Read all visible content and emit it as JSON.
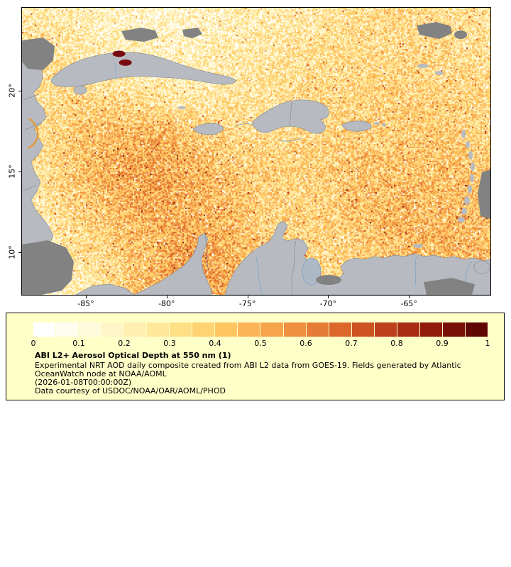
{
  "map": {
    "y_tick_labels": [
      "20°",
      "15°",
      "10°"
    ],
    "x_tick_labels": [
      "-85°",
      "-80°",
      "-75°",
      "-70°",
      "-65°"
    ]
  },
  "legend": {
    "background": "#FFFFC8",
    "title": "ABI L2+ Aerosol Optical Depth at 550 nm (1)",
    "caption_lines": [
      "Experimental NRT AOD daily composite created from ABI L2 data from GOES-19. Fields generated by Atlantic",
      "OceanWatch node at NOAA/AOML",
      "(2026-01-08T00:00:00Z)",
      "Data courtesy of USDOC/NOAA/OAR/AOML/PHOD"
    ]
  },
  "chart_data": {
    "type": "heatmap",
    "title": "ABI L2+ Aerosol Optical Depth at 550 nm (1)",
    "lon_range": [
      -89,
      -60
    ],
    "lat_range": [
      7.4,
      25.2
    ],
    "x_ticks_lon": [
      -85,
      -80,
      -75,
      -70,
      -65
    ],
    "y_ticks_lat": [
      20,
      15,
      10
    ],
    "colorbar": {
      "min": 0,
      "max": 1,
      "tick_labels": [
        "0",
        "0.1",
        "0.2",
        "0.3",
        "0.4",
        "0.5",
        "0.6",
        "0.7",
        "0.8",
        "0.9",
        "1"
      ],
      "colors": [
        "#ffffff",
        "#fffdf0",
        "#fffadc",
        "#fff5c6",
        "#ffefb0",
        "#ffe89a",
        "#ffdf85",
        "#ffd371",
        "#ffc561",
        "#fcb556",
        "#f6a44b",
        "#ef9040",
        "#e67c36",
        "#db672c",
        "#cd5323",
        "#bd3f1b",
        "#a92d13",
        "#921c0c",
        "#781007",
        "#5f0604"
      ]
    },
    "aod_field": {
      "description": "estimated AOD on coarse grid; rows north to south, cols west to east",
      "values": [
        [
          0.22,
          0.2,
          0.16,
          0.14,
          0.16,
          0.18,
          0.2,
          0.24,
          0.28,
          0.3,
          0.28,
          0.26
        ],
        [
          0.28,
          0.26,
          0.2,
          0.16,
          0.18,
          0.2,
          0.24,
          0.28,
          0.3,
          0.32,
          0.3,
          0.28
        ],
        [
          0.26,
          0.3,
          0.28,
          0.22,
          0.2,
          0.24,
          0.28,
          0.3,
          0.32,
          0.34,
          0.32,
          0.3
        ],
        [
          0.22,
          0.36,
          0.42,
          0.44,
          0.38,
          0.3,
          0.3,
          0.33,
          0.35,
          0.36,
          0.36,
          0.32
        ],
        [
          0.2,
          0.36,
          0.46,
          0.5,
          0.44,
          0.38,
          0.34,
          0.34,
          0.38,
          0.4,
          0.4,
          0.36
        ],
        [
          0.16,
          0.3,
          0.4,
          0.46,
          0.44,
          0.4,
          0.34,
          0.34,
          0.4,
          0.44,
          0.42,
          0.4
        ],
        [
          0.12,
          0.22,
          0.32,
          0.42,
          0.52,
          0.44,
          0.32,
          0.3,
          0.36,
          0.42,
          0.44,
          0.42
        ],
        [
          0.1,
          0.16,
          0.26,
          0.44,
          0.56,
          0.4,
          0.3,
          0.3,
          0.34,
          0.4,
          0.42,
          0.38
        ]
      ]
    },
    "hotspots": [
      {
        "lon": -83.0,
        "lat": 22.35,
        "aod": 0.95
      },
      {
        "lon": -82.6,
        "lat": 21.8,
        "aod": 0.9
      }
    ],
    "land_color": "#b7bbc1",
    "no_data_color": "#828282",
    "hotspot_color": "#7a0a12",
    "grid": false,
    "legend_position": "bottom"
  }
}
